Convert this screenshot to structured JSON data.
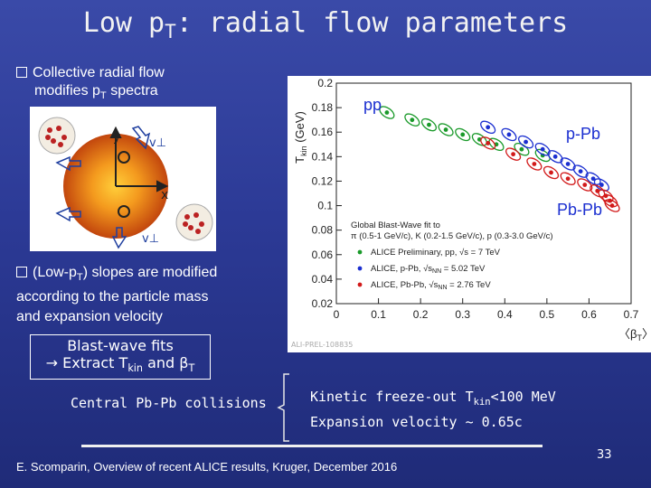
{
  "slide": {
    "title": "Low p",
    "title_sub": "T",
    "title_rest": ": radial flow parameters",
    "bullet1_line1": "Collective radial flow",
    "bullet1_line2": "modifies p",
    "bullet1_sub": "T",
    "bullet1_rest": " spectra",
    "bullet2_line1_a": "(Low-p",
    "bullet2_line1_sub": "T",
    "bullet2_line1_b": ") slopes are modified",
    "bullet2_line2": "according to the particle mass",
    "bullet2_line3": "and expansion velocity",
    "box_line1": "Blast-wave fits",
    "box_line2_a": "→ Extract T",
    "box_line2_sub": "kin",
    "box_line2_b": " and β",
    "box_line2_sub2": "T",
    "central_label": "Central Pb-Pb collisions",
    "result_line1_a": "Kinetic freeze-out T",
    "result_line1_sub": "kin",
    "result_line1_b": "<100 MeV",
    "result_line2": "Expansion velocity ~ 0.65c",
    "footer": "E. Scomparin, Overview of recent ALICE results, Kruger, December 2016",
    "page_number": "33"
  },
  "diagram": {
    "label_y": "y",
    "label_x": "x",
    "label_v1": "v⊥",
    "label_v2": "v⊥"
  },
  "chart_data": {
    "type": "scatter",
    "ylabel": "T",
    "ylabel_sub": "kin",
    "ylabel_unit": " (GeV)",
    "xlabel": "〈β",
    "xlabel_sub": "T",
    "xlabel_end": "〉",
    "xlim": [
      0,
      0.7
    ],
    "ylim": [
      0.02,
      0.2
    ],
    "x_ticks": [
      "0",
      "0.1",
      "0.2",
      "0.3",
      "0.4",
      "0.5",
      "0.6",
      "0.7"
    ],
    "y_ticks": [
      "0.02",
      "0.04",
      "0.06",
      "0.08",
      "0.1",
      "0.12",
      "0.14",
      "0.16",
      "0.18",
      "0.2"
    ],
    "system_labels": [
      "pp",
      "p-Pb",
      "Pb-Pb"
    ],
    "legend_title_1": "Global Blast-Wave fit to",
    "legend_title_2": "π (0.5-1 GeV/c), K (0.2-1.5 GeV/c), p (0.3-3.0 GeV/c)",
    "legend": [
      {
        "name": "ALICE Preliminary, pp, √s = 7 TeV",
        "color": "#1a9a2a"
      },
      {
        "name": "ALICE, p-Pb, √s",
        "name_sub": "NN",
        "name_end": " = 5.02 TeV",
        "color": "#1b2fd0"
      },
      {
        "name": "ALICE, Pb-Pb, √s",
        "name_sub": "NN",
        "name_end": " = 2.76 TeV",
        "color": "#d21a1a"
      }
    ],
    "watermark": "ALI-PREL-108835",
    "series": [
      {
        "name": "pp",
        "color": "#1a9a2a",
        "points": [
          [
            0.12,
            0.176
          ],
          [
            0.18,
            0.17
          ],
          [
            0.22,
            0.166
          ],
          [
            0.26,
            0.162
          ],
          [
            0.3,
            0.158
          ],
          [
            0.34,
            0.154
          ],
          [
            0.38,
            0.15
          ],
          [
            0.44,
            0.146
          ],
          [
            0.49,
            0.141
          ]
        ]
      },
      {
        "name": "p-Pb",
        "color": "#1b2fd0",
        "points": [
          [
            0.36,
            0.164
          ],
          [
            0.41,
            0.158
          ],
          [
            0.45,
            0.152
          ],
          [
            0.49,
            0.146
          ],
          [
            0.52,
            0.14
          ],
          [
            0.55,
            0.134
          ],
          [
            0.58,
            0.128
          ],
          [
            0.61,
            0.122
          ],
          [
            0.63,
            0.117
          ]
        ]
      },
      {
        "name": "Pb-Pb",
        "color": "#d21a1a",
        "points": [
          [
            0.36,
            0.151
          ],
          [
            0.42,
            0.142
          ],
          [
            0.47,
            0.134
          ],
          [
            0.51,
            0.127
          ],
          [
            0.55,
            0.122
          ],
          [
            0.59,
            0.117
          ],
          [
            0.62,
            0.112
          ],
          [
            0.64,
            0.108
          ],
          [
            0.65,
            0.104
          ],
          [
            0.655,
            0.1
          ]
        ]
      }
    ]
  }
}
